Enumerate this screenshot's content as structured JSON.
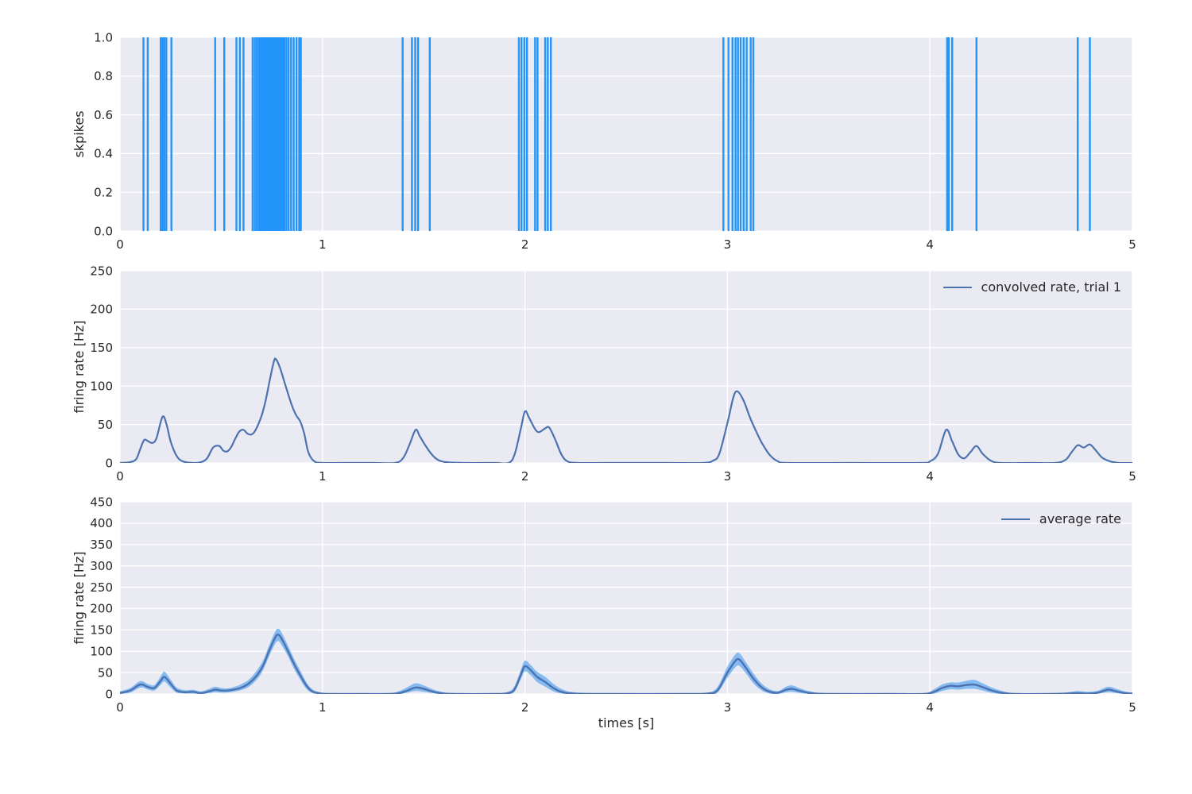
{
  "figure": {
    "panel_background": "#EAEAF2",
    "grid_color": "#FFFFFF",
    "text_color": "#262626",
    "spike_color": "#2394FA",
    "line_color": "#4C72B0",
    "band_color": "#85BBF0"
  },
  "chart_data": [
    {
      "type": "event",
      "ylabel": "skpikes",
      "xlim": [
        0,
        5
      ],
      "ylim": [
        0,
        1
      ],
      "xticks": [
        "0",
        "1",
        "2",
        "3",
        "4",
        "5"
      ],
      "yticks": [
        "0.0",
        "0.2",
        "0.4",
        "0.6",
        "0.8",
        "1.0"
      ],
      "color": "#2394FA",
      "spike_times": [
        0.116,
        0.137,
        0.201,
        0.21,
        0.219,
        0.229,
        0.254,
        0.47,
        0.515,
        0.575,
        0.592,
        0.61,
        0.655,
        0.666,
        0.676,
        0.686,
        0.695,
        0.703,
        0.71,
        0.717,
        0.724,
        0.731,
        0.738,
        0.745,
        0.752,
        0.759,
        0.766,
        0.773,
        0.78,
        0.788,
        0.796,
        0.804,
        0.812,
        0.822,
        0.833,
        0.845,
        0.858,
        0.872,
        0.885,
        0.893,
        1.396,
        1.442,
        1.458,
        1.472,
        1.53,
        1.97,
        1.983,
        1.997,
        2.01,
        2.05,
        2.062,
        2.1,
        2.113,
        2.128,
        2.98,
        3.005,
        3.025,
        3.04,
        3.052,
        3.065,
        3.08,
        3.095,
        3.115,
        3.128,
        4.085,
        4.093,
        4.11,
        4.23,
        4.73,
        4.79
      ]
    },
    {
      "type": "line",
      "legend": "convolved rate, trial 1",
      "ylabel": "firing rate [Hz]",
      "xlim": [
        0,
        5
      ],
      "ylim": [
        0,
        250
      ],
      "xticks": [
        "0",
        "1",
        "2",
        "3",
        "4",
        "5"
      ],
      "yticks": [
        "0",
        "50",
        "100",
        "150",
        "200",
        "250"
      ],
      "color": "#4C72B0",
      "points": [
        [
          0.0,
          0
        ],
        [
          0.05,
          1
        ],
        [
          0.08,
          5
        ],
        [
          0.1,
          18
        ],
        [
          0.12,
          30
        ],
        [
          0.14,
          28
        ],
        [
          0.16,
          26
        ],
        [
          0.18,
          32
        ],
        [
          0.21,
          60
        ],
        [
          0.23,
          50
        ],
        [
          0.25,
          28
        ],
        [
          0.28,
          9
        ],
        [
          0.31,
          2
        ],
        [
          0.36,
          0
        ],
        [
          0.4,
          1
        ],
        [
          0.43,
          6
        ],
        [
          0.46,
          20
        ],
        [
          0.49,
          22
        ],
        [
          0.51,
          16
        ],
        [
          0.53,
          15
        ],
        [
          0.55,
          21
        ],
        [
          0.57,
          32
        ],
        [
          0.59,
          41
        ],
        [
          0.61,
          43
        ],
        [
          0.63,
          38
        ],
        [
          0.65,
          37
        ],
        [
          0.67,
          43
        ],
        [
          0.7,
          62
        ],
        [
          0.72,
          82
        ],
        [
          0.74,
          108
        ],
        [
          0.76,
          132
        ],
        [
          0.77,
          135
        ],
        [
          0.79,
          124
        ],
        [
          0.81,
          107
        ],
        [
          0.83,
          90
        ],
        [
          0.85,
          74
        ],
        [
          0.87,
          62
        ],
        [
          0.89,
          54
        ],
        [
          0.91,
          38
        ],
        [
          0.93,
          14
        ],
        [
          0.96,
          2
        ],
        [
          1.0,
          0
        ],
        [
          1.1,
          0
        ],
        [
          1.25,
          0
        ],
        [
          1.36,
          0
        ],
        [
          1.4,
          7
        ],
        [
          1.43,
          24
        ],
        [
          1.46,
          43
        ],
        [
          1.48,
          35
        ],
        [
          1.51,
          22
        ],
        [
          1.54,
          11
        ],
        [
          1.57,
          4
        ],
        [
          1.61,
          1
        ],
        [
          1.7,
          0
        ],
        [
          1.85,
          0
        ],
        [
          1.92,
          0
        ],
        [
          1.95,
          12
        ],
        [
          1.98,
          45
        ],
        [
          2.0,
          67
        ],
        [
          2.02,
          59
        ],
        [
          2.05,
          44
        ],
        [
          2.07,
          40
        ],
        [
          2.1,
          45
        ],
        [
          2.12,
          46
        ],
        [
          2.15,
          30
        ],
        [
          2.18,
          11
        ],
        [
          2.21,
          2
        ],
        [
          2.26,
          0
        ],
        [
          2.4,
          0
        ],
        [
          2.7,
          0
        ],
        [
          2.88,
          0
        ],
        [
          2.93,
          3
        ],
        [
          2.96,
          12
        ],
        [
          3.0,
          52
        ],
        [
          3.03,
          86
        ],
        [
          3.05,
          93
        ],
        [
          3.08,
          81
        ],
        [
          3.11,
          60
        ],
        [
          3.14,
          42
        ],
        [
          3.17,
          26
        ],
        [
          3.21,
          10
        ],
        [
          3.25,
          2
        ],
        [
          3.3,
          0
        ],
        [
          3.6,
          0
        ],
        [
          3.95,
          0
        ],
        [
          4.0,
          2
        ],
        [
          4.04,
          12
        ],
        [
          4.08,
          43
        ],
        [
          4.11,
          28
        ],
        [
          4.14,
          11
        ],
        [
          4.17,
          6
        ],
        [
          4.2,
          14
        ],
        [
          4.23,
          22
        ],
        [
          4.26,
          12
        ],
        [
          4.3,
          3
        ],
        [
          4.35,
          0
        ],
        [
          4.5,
          0
        ],
        [
          4.62,
          0
        ],
        [
          4.67,
          4
        ],
        [
          4.7,
          14
        ],
        [
          4.73,
          23
        ],
        [
          4.76,
          20
        ],
        [
          4.79,
          24
        ],
        [
          4.82,
          16
        ],
        [
          4.85,
          7
        ],
        [
          4.89,
          2
        ],
        [
          4.93,
          0
        ],
        [
          5.0,
          0
        ]
      ]
    },
    {
      "type": "line_band",
      "legend": "average rate",
      "ylabel": "firing rate [Hz]",
      "xlabel": "times [s]",
      "xlim": [
        0,
        5
      ],
      "ylim": [
        0,
        450
      ],
      "xticks": [
        "0",
        "1",
        "2",
        "3",
        "4",
        "5"
      ],
      "yticks": [
        "0",
        "50",
        "100",
        "150",
        "200",
        "250",
        "300",
        "350",
        "400",
        "450"
      ],
      "line_color": "#4C72B0",
      "band_color": "#85BBF0",
      "points": [
        [
          0.0,
          2,
          0,
          6
        ],
        [
          0.05,
          8,
          3,
          14
        ],
        [
          0.09,
          20,
          13,
          28
        ],
        [
          0.11,
          22,
          15,
          30
        ],
        [
          0.14,
          16,
          10,
          23
        ],
        [
          0.17,
          14,
          8,
          21
        ],
        [
          0.2,
          30,
          21,
          41
        ],
        [
          0.22,
          40,
          29,
          52
        ],
        [
          0.25,
          24,
          15,
          34
        ],
        [
          0.28,
          8,
          3,
          15
        ],
        [
          0.32,
          4,
          1,
          9
        ],
        [
          0.36,
          5,
          1,
          10
        ],
        [
          0.4,
          2,
          0,
          6
        ],
        [
          0.44,
          6,
          2,
          12
        ],
        [
          0.47,
          10,
          4,
          17
        ],
        [
          0.5,
          8,
          3,
          14
        ],
        [
          0.53,
          8,
          3,
          13
        ],
        [
          0.56,
          10,
          5,
          16
        ],
        [
          0.6,
          15,
          9,
          23
        ],
        [
          0.64,
          26,
          18,
          35
        ],
        [
          0.68,
          46,
          36,
          58
        ],
        [
          0.71,
          70,
          59,
          82
        ],
        [
          0.74,
          105,
          92,
          118
        ],
        [
          0.77,
          135,
          120,
          149
        ],
        [
          0.785,
          138,
          123,
          152
        ],
        [
          0.8,
          128,
          113,
          142
        ],
        [
          0.83,
          100,
          88,
          113
        ],
        [
          0.86,
          70,
          58,
          82
        ],
        [
          0.89,
          44,
          34,
          55
        ],
        [
          0.92,
          20,
          12,
          28
        ],
        [
          0.95,
          6,
          2,
          11
        ],
        [
          0.99,
          1,
          0,
          4
        ],
        [
          1.05,
          0,
          0,
          1
        ],
        [
          1.2,
          0,
          0,
          1
        ],
        [
          1.33,
          0,
          0,
          2
        ],
        [
          1.38,
          2,
          0,
          7
        ],
        [
          1.42,
          8,
          3,
          16
        ],
        [
          1.46,
          15,
          7,
          25
        ],
        [
          1.5,
          12,
          5,
          20
        ],
        [
          1.54,
          6,
          2,
          12
        ],
        [
          1.58,
          2,
          0,
          6
        ],
        [
          1.65,
          0,
          0,
          1
        ],
        [
          1.85,
          0,
          0,
          1
        ],
        [
          1.92,
          2,
          0,
          6
        ],
        [
          1.95,
          12,
          6,
          20
        ],
        [
          1.98,
          45,
          35,
          57
        ],
        [
          2.0,
          65,
          53,
          78
        ],
        [
          2.03,
          55,
          43,
          67
        ],
        [
          2.06,
          40,
          28,
          52
        ],
        [
          2.1,
          28,
          17,
          40
        ],
        [
          2.14,
          14,
          6,
          24
        ],
        [
          2.18,
          5,
          1,
          12
        ],
        [
          2.24,
          1,
          0,
          4
        ],
        [
          2.4,
          0,
          0,
          1
        ],
        [
          2.8,
          0,
          0,
          1
        ],
        [
          2.9,
          1,
          0,
          3
        ],
        [
          2.95,
          8,
          3,
          16
        ],
        [
          3.0,
          50,
          38,
          64
        ],
        [
          3.04,
          78,
          63,
          93
        ],
        [
          3.06,
          80,
          65,
          95
        ],
        [
          3.09,
          62,
          49,
          75
        ],
        [
          3.13,
          35,
          24,
          47
        ],
        [
          3.17,
          15,
          8,
          24
        ],
        [
          3.21,
          5,
          1,
          11
        ],
        [
          3.25,
          3,
          0,
          7
        ],
        [
          3.29,
          10,
          4,
          17
        ],
        [
          3.32,
          12,
          5,
          20
        ],
        [
          3.36,
          7,
          2,
          13
        ],
        [
          3.41,
          2,
          0,
          6
        ],
        [
          3.5,
          0,
          0,
          1
        ],
        [
          3.8,
          0,
          0,
          1
        ],
        [
          3.97,
          0,
          0,
          2
        ],
        [
          4.02,
          5,
          1,
          11
        ],
        [
          4.06,
          14,
          7,
          22
        ],
        [
          4.1,
          19,
          11,
          27
        ],
        [
          4.14,
          18,
          10,
          27
        ],
        [
          4.18,
          21,
          12,
          31
        ],
        [
          4.22,
          22,
          12,
          33
        ],
        [
          4.26,
          16,
          8,
          25
        ],
        [
          4.3,
          9,
          3,
          16
        ],
        [
          4.35,
          3,
          0,
          8
        ],
        [
          4.42,
          0,
          0,
          2
        ],
        [
          4.6,
          0,
          0,
          1
        ],
        [
          4.68,
          1,
          0,
          4
        ],
        [
          4.73,
          2,
          0,
          7
        ],
        [
          4.78,
          1,
          0,
          5
        ],
        [
          4.83,
          3,
          1,
          8
        ],
        [
          4.88,
          10,
          4,
          17
        ],
        [
          4.92,
          6,
          2,
          12
        ],
        [
          4.96,
          2,
          0,
          6
        ],
        [
          5.0,
          1,
          0,
          3
        ]
      ]
    }
  ]
}
